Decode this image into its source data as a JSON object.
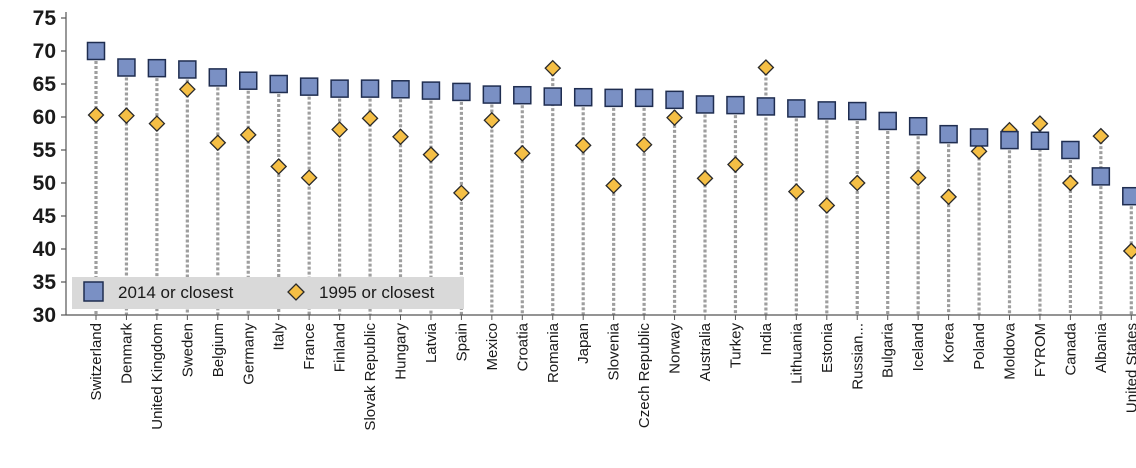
{
  "chart_data": {
    "type": "scatter",
    "title": "",
    "xlabel": "",
    "ylabel": "",
    "ylim": [
      30,
      75
    ],
    "yticks": [
      "30",
      "35",
      "40",
      "45",
      "50",
      "55",
      "60",
      "65",
      "70",
      "75"
    ],
    "legend_position": "bottom-left",
    "grid": false,
    "colors": {
      "series_2014_fill": "#7a90c4",
      "series_2014_stroke": "#1f2d50",
      "series_1995_fill": "#f5bf45",
      "series_1995_stroke": "#2a2a2a",
      "dropline": "#9e9e9e",
      "legend_bg": "#d9d9d9",
      "axis": "#555555"
    },
    "categories": [
      "Switzerland",
      "Denmark",
      "United Kingdom",
      "Sweden",
      "Belgium",
      "Germany",
      "Italy",
      "France",
      "Finland",
      "Slovak Republic",
      "Hungary",
      "Latvia",
      "Spain",
      "Mexico",
      "Croatia",
      "Romania",
      "Japan",
      "Slovenia",
      "Czech Republic",
      "Norway",
      "Australia",
      "Turkey",
      "India",
      "Lithuania",
      "Estonia",
      "Russian...",
      "Bulgaria",
      "Iceland",
      "Korea",
      "Poland",
      "Moldova",
      "FYROM",
      "Canada",
      "Albania",
      "United States"
    ],
    "series": [
      {
        "name": "2014 or closest",
        "marker": "square",
        "values": [
          70.0,
          67.5,
          67.4,
          67.2,
          66.0,
          65.5,
          65.0,
          64.6,
          64.3,
          64.3,
          64.2,
          64.0,
          63.8,
          63.4,
          63.3,
          63.1,
          63.0,
          62.9,
          62.9,
          62.6,
          61.9,
          61.8,
          61.6,
          61.3,
          61.0,
          60.9,
          59.4,
          58.6,
          57.4,
          56.9,
          56.5,
          56.4,
          55.0,
          51.0,
          48.0
        ]
      },
      {
        "name": "1995 or closest",
        "marker": "diamond",
        "values": [
          60.3,
          60.2,
          59.0,
          64.2,
          56.1,
          57.3,
          52.5,
          50.8,
          58.1,
          59.8,
          57.0,
          54.3,
          48.5,
          59.5,
          54.5,
          67.4,
          55.7,
          49.6,
          55.8,
          59.9,
          50.7,
          52.8,
          67.5,
          48.7,
          46.6,
          50.0,
          null,
          50.8,
          47.9,
          54.8,
          58.0,
          59.0,
          50.0,
          57.1,
          39.7
        ]
      }
    ]
  }
}
